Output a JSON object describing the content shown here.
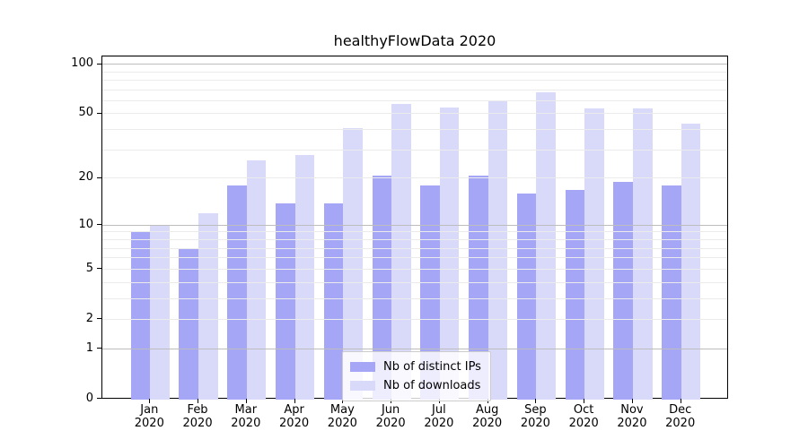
{
  "figure": {
    "title": "healthyFlowData 2020"
  },
  "chart_data": {
    "type": "bar",
    "title": "healthyFlowData 2020",
    "x": {
      "months": [
        "Jan",
        "Feb",
        "Mar",
        "Apr",
        "May",
        "Jun",
        "Jul",
        "Aug",
        "Sep",
        "Oct",
        "Nov",
        "Dec"
      ],
      "year": "2020"
    },
    "series": [
      {
        "name": "Nb of distinct IPs",
        "color": "#a6a6f7",
        "values": [
          9,
          7,
          18,
          14,
          14,
          21,
          18,
          21,
          16,
          17,
          19,
          18
        ]
      },
      {
        "name": "Nb of downloads",
        "color": "#d9d9f9",
        "values": [
          10,
          12,
          26,
          28,
          41,
          58,
          55,
          61,
          68,
          54,
          54,
          44
        ]
      }
    ],
    "yscale": "log1p",
    "ylim": [
      0,
      112
    ],
    "yticks": [
      0,
      1,
      2,
      5,
      10,
      20,
      50,
      100
    ],
    "grid_major_at": [
      1,
      10,
      100
    ],
    "grid_minor_at": [
      2,
      3,
      4,
      5,
      6,
      7,
      8,
      9,
      20,
      30,
      40,
      50,
      60,
      70,
      80,
      90,
      110
    ],
    "legend_position": "lower center",
    "colors": {
      "grid_major": "#bdbdbd",
      "grid_minor": "#ebebeb",
      "axis": "#000000",
      "background": "#ffffff",
      "legend_border": "#cccccc"
    }
  }
}
